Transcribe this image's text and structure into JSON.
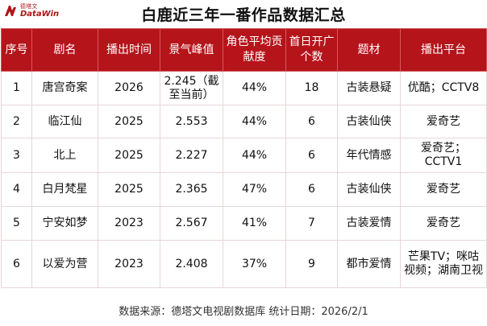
{
  "brand": {
    "name_cn": "德塔文",
    "name_en": "DataWin",
    "color": "#b01317"
  },
  "title": "白鹿近三年一番作品数据汇总",
  "table": {
    "headers": [
      "序号",
      "剧名",
      "播出时间",
      "景气峰值",
      "角色平均贡献度",
      "首日开广个数",
      "题材",
      "播出平台"
    ],
    "header_color": "#b6141b",
    "rows": [
      [
        "1",
        "唐宫奇案",
        "2026",
        "2.245（截至当前）",
        "44%",
        "18",
        "古装悬疑",
        "优酷；CCTV8"
      ],
      [
        "2",
        "临江仙",
        "2025",
        "2.553",
        "44%",
        "6",
        "古装仙侠",
        "爱奇艺"
      ],
      [
        "3",
        "北上",
        "2025",
        "2.227",
        "44%",
        "6",
        "年代情感",
        "爱奇艺；CCTV1"
      ],
      [
        "4",
        "白月梵星",
        "2025",
        "2.365",
        "47%",
        "6",
        "古装仙侠",
        "爱奇艺"
      ],
      [
        "5",
        "宁安如梦",
        "2023",
        "2.567",
        "41%",
        "7",
        "古装爱情",
        "爱奇艺"
      ],
      [
        "6",
        "以爱为营",
        "2023",
        "2.408",
        "37%",
        "9",
        "都市爱情",
        "芒果TV；咪咕视频；湖南卫视"
      ]
    ]
  },
  "footer": "数据来源：德塔文电视剧数据库    统计日期：2026/2/1"
}
